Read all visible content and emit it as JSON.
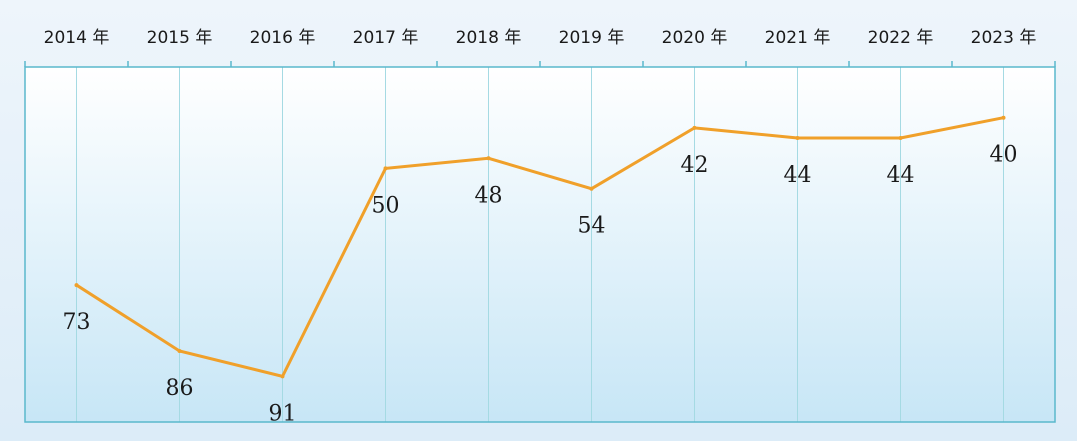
{
  "chart_data": {
    "type": "line",
    "categories": [
      "2014 年",
      "2015 年",
      "2016 年",
      "2017 年",
      "2018 年",
      "2019 年",
      "2020 年",
      "2021 年",
      "2022 年",
      "2023 年"
    ],
    "series": [
      {
        "values": [
          73,
          86,
          91,
          50,
          48,
          54,
          42,
          44,
          44,
          40
        ],
        "labels": [
          "73",
          "86",
          "91",
          "50",
          "48",
          "54",
          "42",
          "44",
          "44",
          "40"
        ]
      }
    ],
    "y_axis": {
      "reversed": true,
      "range": [
        100,
        30
      ]
    },
    "grid": true,
    "line_color": "#f0a02a",
    "frame_color": "#5ab8cc",
    "grid_color": "#a5dae3"
  }
}
